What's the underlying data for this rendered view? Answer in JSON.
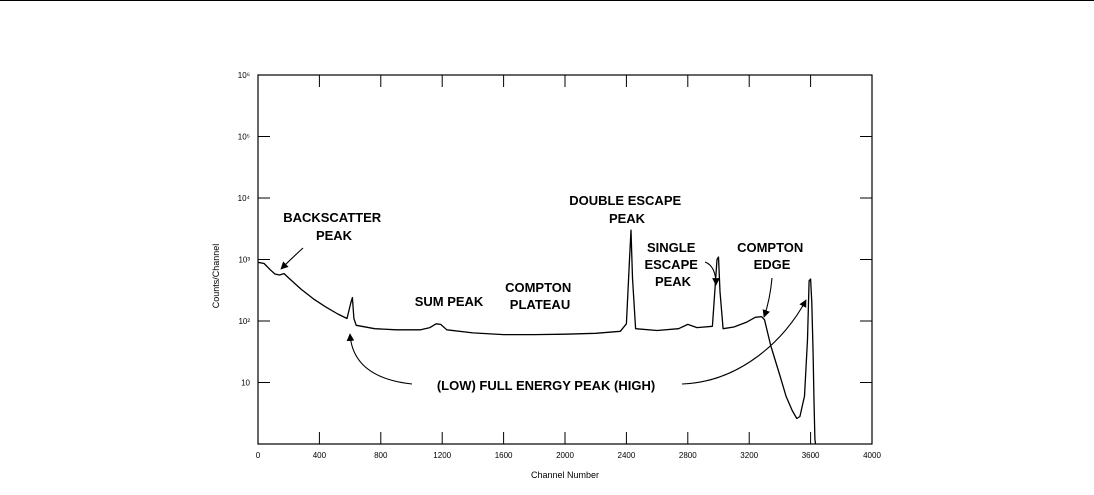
{
  "chart_data": {
    "type": "line",
    "title": "",
    "xlabel": "Channel Number",
    "ylabel": "Counts/Channel",
    "yscale": "log",
    "xlim": [
      0,
      4000
    ],
    "ylim": [
      1,
      1000000
    ],
    "grid": false,
    "xticks": [
      {
        "value": 0,
        "label": "0"
      },
      {
        "value": 400,
        "label": "400"
      },
      {
        "value": 800,
        "label": "800"
      },
      {
        "value": 1200,
        "label": "1200"
      },
      {
        "value": 1600,
        "label": "1600"
      },
      {
        "value": 2000,
        "label": "2000"
      },
      {
        "value": 2400,
        "label": "2400"
      },
      {
        "value": 2800,
        "label": "2800"
      },
      {
        "value": 3200,
        "label": "3200"
      },
      {
        "value": 3600,
        "label": "3600"
      },
      {
        "value": 4000,
        "label": "4000"
      }
    ],
    "yticks": [
      {
        "value": 10,
        "label": "10"
      },
      {
        "value": 100,
        "label": "10²"
      },
      {
        "value": 1000,
        "label": "10³"
      },
      {
        "value": 10000,
        "label": "10⁴"
      },
      {
        "value": 100000,
        "label": "10⁵"
      },
      {
        "value": 1000000,
        "label": "10⁶"
      }
    ],
    "series": [
      {
        "points": [
          [
            0,
            900
          ],
          [
            40,
            860
          ],
          [
            80,
            680
          ],
          [
            110,
            580
          ],
          [
            140,
            560
          ],
          [
            170,
            590
          ],
          [
            200,
            500
          ],
          [
            280,
            330
          ],
          [
            360,
            230
          ],
          [
            440,
            170
          ],
          [
            520,
            130
          ],
          [
            580,
            110
          ],
          [
            605,
            200
          ],
          [
            615,
            240
          ],
          [
            625,
            110
          ],
          [
            640,
            85
          ],
          [
            760,
            75
          ],
          [
            900,
            72
          ],
          [
            1060,
            72
          ],
          [
            1120,
            78
          ],
          [
            1160,
            90
          ],
          [
            1190,
            88
          ],
          [
            1230,
            72
          ],
          [
            1400,
            64
          ],
          [
            1600,
            60
          ],
          [
            1800,
            60
          ],
          [
            2000,
            61
          ],
          [
            2200,
            63
          ],
          [
            2360,
            68
          ],
          [
            2400,
            90
          ],
          [
            2420,
            1000
          ],
          [
            2430,
            3000
          ],
          [
            2440,
            500
          ],
          [
            2460,
            75
          ],
          [
            2600,
            70
          ],
          [
            2740,
            75
          ],
          [
            2800,
            88
          ],
          [
            2860,
            78
          ],
          [
            2960,
            82
          ],
          [
            2990,
            1000
          ],
          [
            3000,
            1100
          ],
          [
            3010,
            300
          ],
          [
            3030,
            75
          ],
          [
            3100,
            80
          ],
          [
            3180,
            95
          ],
          [
            3240,
            115
          ],
          [
            3280,
            118
          ],
          [
            3300,
            105
          ],
          [
            3340,
            40
          ],
          [
            3400,
            13
          ],
          [
            3440,
            6
          ],
          [
            3480,
            3.5
          ],
          [
            3510,
            2.6
          ],
          [
            3530,
            2.8
          ],
          [
            3560,
            6
          ],
          [
            3580,
            50
          ],
          [
            3590,
            450
          ],
          [
            3600,
            480
          ],
          [
            3608,
            200
          ],
          [
            3616,
            30
          ],
          [
            3622,
            5
          ],
          [
            3628,
            1.2
          ],
          [
            3632,
            0.8
          ]
        ]
      }
    ],
    "annotations": [
      {
        "text_lines": [
          "BACKSCATTER",
          "PEAK"
        ],
        "target": [
          130,
          590
        ]
      },
      {
        "text_lines": [
          "SUM PEAK"
        ],
        "target": null
      },
      {
        "text_lines": [
          "COMPTON",
          "PLATEAU"
        ],
        "target": null
      },
      {
        "text_lines": [
          "DOUBLE ESCAPE",
          "PEAK"
        ],
        "target": null
      },
      {
        "text_lines": [
          "SINGLE",
          "ESCAPE",
          "PEAK"
        ],
        "target": [
          2990,
          1000
        ]
      },
      {
        "text_lines": [
          "COMPTON",
          "EDGE"
        ],
        "target": [
          3280,
          118
        ]
      },
      {
        "text_lines": [
          "(LOW) FULL ENERGY PEAK (HIGH)"
        ],
        "target": [
          610,
          85
        ],
        "target2": [
          3555,
          490
        ]
      }
    ]
  }
}
